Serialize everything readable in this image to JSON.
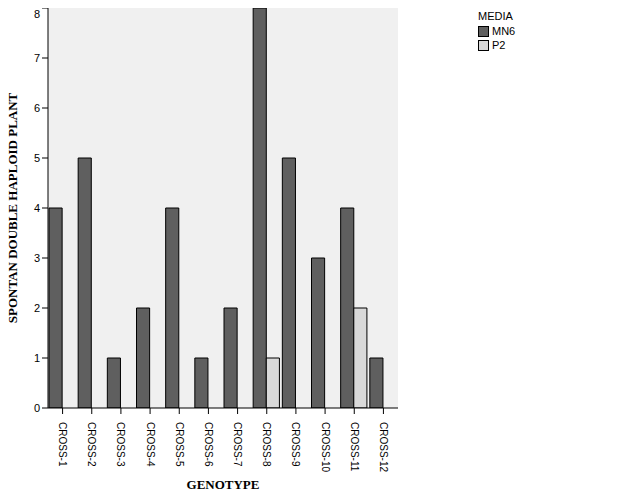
{
  "chart_data": {
    "type": "bar",
    "x_label": "GENOTYPE",
    "y_label": "SPONTAN DOUBLE HAPLOID PLANT",
    "legend_title": "MEDIA",
    "legend": "top right",
    "grid": false,
    "categories": [
      "CROSS-1",
      "CROSS-2",
      "CROSS-3",
      "CROSS-4",
      "CROSS-5",
      "CROSS-6",
      "CROSS-7",
      "CROSS-8",
      "CROSS-9",
      "CROSS-10",
      "CROSS-11",
      "CROSS-12"
    ],
    "series": [
      {
        "name": "MN6",
        "color": "#5f5f5f",
        "values": [
          4,
          5,
          1,
          2,
          4,
          1,
          2,
          8,
          5,
          3,
          4,
          1
        ]
      },
      {
        "name": "P2",
        "color": "#d9d9d9",
        "values": [
          null,
          null,
          null,
          null,
          null,
          null,
          null,
          1,
          null,
          null,
          2,
          null
        ]
      }
    ],
    "ylim": [
      0,
      8
    ],
    "yticks": [
      0,
      1,
      2,
      3,
      4,
      5,
      6,
      7,
      8
    ]
  }
}
